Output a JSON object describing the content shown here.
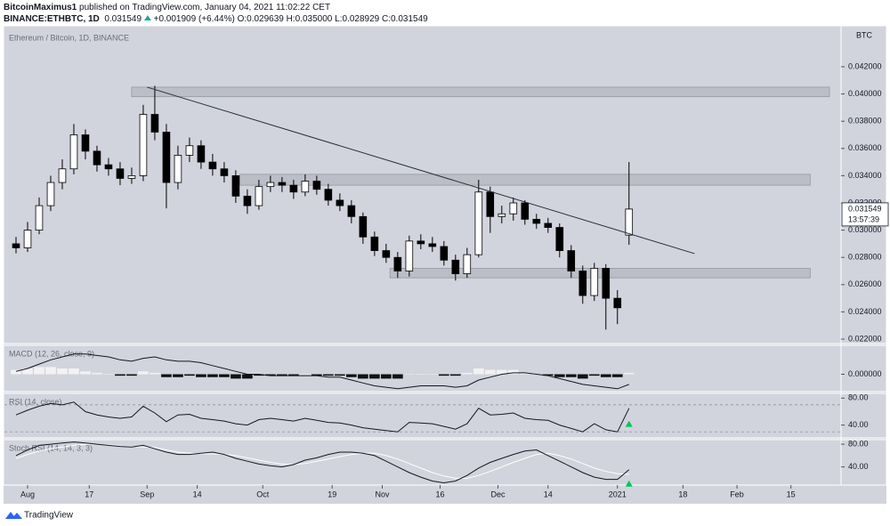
{
  "header": {
    "author": "BitcoinMaximus1",
    "published": "published on TradingView.com, January 04, 2021 11:02:22 CET",
    "symbol": "BINANCE:ETHBTC, 1D",
    "last": "0.031549",
    "change": "+0.001909 (+6.44%)",
    "open": "O:0.029639",
    "high": "H:0.035000",
    "low": "L:0.028929",
    "close": "C:0.031549"
  },
  "footer": {
    "brand": "TradingView"
  },
  "chart_data": {
    "type": "candlestick",
    "title": "Ethereum / Bitcoin, 1D, BINANCE",
    "y_axis_unit": "BTC",
    "last_price_label": "0.031549",
    "countdown": "13:57:39",
    "xlim": [
      -6,
      211
    ],
    "xticks": [
      {
        "value": 0,
        "label": "Aug"
      },
      {
        "value": 16,
        "label": "17"
      },
      {
        "value": 31,
        "label": "Sep"
      },
      {
        "value": 44,
        "label": "14"
      },
      {
        "value": 61,
        "label": "Oct"
      },
      {
        "value": 79,
        "label": "19"
      },
      {
        "value": 92,
        "label": "Nov"
      },
      {
        "value": 107,
        "label": "16"
      },
      {
        "value": 122,
        "label": "Dec"
      },
      {
        "value": 135,
        "label": "14"
      },
      {
        "value": 153,
        "label": "2021"
      },
      {
        "value": 170,
        "label": "18"
      },
      {
        "value": 184,
        "label": "Feb"
      },
      {
        "value": 198,
        "label": "15"
      }
    ],
    "ylim": [
      0.02174,
      0.04494
    ],
    "yticks": [
      {
        "value": 0.022,
        "label": "0.022000"
      },
      {
        "value": 0.024,
        "label": "0.024000"
      },
      {
        "value": 0.026,
        "label": "0.026000"
      },
      {
        "value": 0.028,
        "label": "0.028000"
      },
      {
        "value": 0.03,
        "label": "0.030000"
      },
      {
        "value": 0.032,
        "label": "0.032000"
      },
      {
        "value": 0.034,
        "label": "0.034000"
      },
      {
        "value": 0.036,
        "label": "0.036000"
      },
      {
        "value": 0.038,
        "label": "0.038000"
      },
      {
        "value": 0.04,
        "label": "0.040000"
      },
      {
        "value": 0.042,
        "label": "0.042000"
      }
    ],
    "up_color": "#ffffff",
    "down_color": "#000000",
    "candles": {
      "x": [
        -3,
        0,
        3,
        6,
        9,
        12,
        15,
        18,
        21,
        24,
        27,
        30,
        33,
        36,
        39,
        42,
        45,
        48,
        51,
        54,
        57,
        60,
        63,
        66,
        69,
        72,
        75,
        78,
        81,
        84,
        87,
        90,
        93,
        96,
        99,
        102,
        105,
        108,
        111,
        114,
        117,
        120,
        123,
        126,
        129,
        132,
        135,
        138,
        141,
        144,
        147,
        150,
        153,
        156
      ],
      "open": [
        0.029,
        0.0287,
        0.03,
        0.0318,
        0.0335,
        0.0345,
        0.037,
        0.0358,
        0.0348,
        0.0345,
        0.0338,
        0.034,
        0.0385,
        0.0372,
        0.0335,
        0.0355,
        0.0362,
        0.035,
        0.0345,
        0.034,
        0.0325,
        0.0318,
        0.0332,
        0.0335,
        0.0333,
        0.0328,
        0.0336,
        0.033,
        0.0322,
        0.0318,
        0.031,
        0.0295,
        0.0285,
        0.028,
        0.027,
        0.0292,
        0.029,
        0.0288,
        0.0278,
        0.0268,
        0.0282,
        0.0328,
        0.031,
        0.0312,
        0.032,
        0.0308,
        0.0305,
        0.0302,
        0.0285,
        0.027,
        0.0252,
        0.0272,
        0.025,
        0.029639
      ],
      "high": [
        0.0295,
        0.0306,
        0.0324,
        0.034,
        0.0352,
        0.0378,
        0.0374,
        0.0362,
        0.0353,
        0.035,
        0.0346,
        0.0392,
        0.0406,
        0.0378,
        0.0362,
        0.0368,
        0.0366,
        0.0356,
        0.035,
        0.0344,
        0.033,
        0.0337,
        0.034,
        0.0339,
        0.0337,
        0.0341,
        0.034,
        0.0334,
        0.0327,
        0.0322,
        0.0313,
        0.0299,
        0.029,
        0.0284,
        0.0296,
        0.0297,
        0.0295,
        0.0292,
        0.0282,
        0.0287,
        0.0337,
        0.0332,
        0.0318,
        0.0324,
        0.0322,
        0.0312,
        0.0309,
        0.0305,
        0.0289,
        0.0274,
        0.0276,
        0.0275,
        0.0256,
        0.035
      ],
      "low": [
        0.0283,
        0.0284,
        0.0297,
        0.0314,
        0.033,
        0.0341,
        0.0352,
        0.0343,
        0.034,
        0.0333,
        0.0334,
        0.0336,
        0.0366,
        0.0316,
        0.033,
        0.035,
        0.0345,
        0.034,
        0.0335,
        0.032,
        0.0312,
        0.0315,
        0.0328,
        0.0328,
        0.0323,
        0.0325,
        0.0326,
        0.0318,
        0.0314,
        0.0305,
        0.029,
        0.0281,
        0.0276,
        0.0265,
        0.0266,
        0.0286,
        0.0284,
        0.0274,
        0.0263,
        0.0265,
        0.028,
        0.0298,
        0.0305,
        0.0307,
        0.0304,
        0.0301,
        0.0298,
        0.028,
        0.0265,
        0.0246,
        0.0248,
        0.0227,
        0.0231,
        0.028929
      ],
      "close": [
        0.0287,
        0.03,
        0.0318,
        0.0335,
        0.0345,
        0.037,
        0.0358,
        0.0348,
        0.0345,
        0.0338,
        0.034,
        0.0385,
        0.0372,
        0.0335,
        0.0355,
        0.0362,
        0.035,
        0.0345,
        0.034,
        0.0325,
        0.0318,
        0.0332,
        0.0335,
        0.0333,
        0.0328,
        0.0336,
        0.033,
        0.0322,
        0.0318,
        0.031,
        0.0295,
        0.0285,
        0.028,
        0.027,
        0.0292,
        0.029,
        0.0288,
        0.0278,
        0.0268,
        0.0282,
        0.0328,
        0.031,
        0.0312,
        0.032,
        0.0308,
        0.0305,
        0.0302,
        0.0285,
        0.027,
        0.0252,
        0.0272,
        0.025,
        0.0243,
        0.031549
      ]
    },
    "zones": [
      {
        "from": 27,
        "to": 208,
        "low": 0.0398,
        "high": 0.0405
      },
      {
        "from": 55,
        "to": 203,
        "low": 0.0333,
        "high": 0.0341
      },
      {
        "from": 94,
        "to": 203,
        "low": 0.0265,
        "high": 0.0272
      }
    ],
    "trendline": {
      "x": [
        31,
        173
      ],
      "y": [
        0.0405,
        0.02828
      ]
    },
    "macd": {
      "title": "MACD (12, 26, close, 9)",
      "ylim": [
        -0.0012,
        0.002
      ],
      "yticks": [
        {
          "value": 0,
          "label": "0.000000"
        }
      ],
      "line": [
        0.0002,
        0.0004,
        0.0007,
        0.001,
        0.0012,
        0.0014,
        0.0014,
        0.0013,
        0.0012,
        0.001,
        0.0009,
        0.0011,
        0.0012,
        0.001,
        0.0009,
        0.0009,
        0.0008,
        0.0006,
        0.0004,
        0.0002,
        0,
        0,
        -0.0001,
        -0.0001,
        -0.0001,
        -0.0001,
        -0.0001,
        -0.0002,
        -0.0002,
        -0.0004,
        -0.0006,
        -0.0008,
        -0.0009,
        -0.001,
        -0.0009,
        -0.0008,
        -0.0008,
        -0.0008,
        -0.0009,
        -0.0008,
        -0.0004,
        -0.0002,
        0,
        0.0001,
        0.0001,
        0,
        -0.0001,
        -0.0003,
        -0.0005,
        -0.0007,
        -0.0008,
        -0.0009,
        -0.001,
        -0.0007
      ],
      "histogram": [
        0.0003,
        0.0004,
        0.0005,
        0.0005,
        0.0004,
        0.0004,
        0.0002,
        0.0001,
        0,
        -0.0001,
        -0.0001,
        0.0002,
        0.0001,
        -0.0002,
        -0.0002,
        -0.0001,
        -0.0002,
        -0.0002,
        -0.0002,
        -0.0003,
        -0.0003,
        -0.0001,
        -0.0001,
        -0.0001,
        -0.0001,
        0,
        -0.0001,
        -0.0001,
        -0.0001,
        -0.0002,
        -0.0003,
        -0.0003,
        -0.0003,
        -0.0003,
        0,
        0,
        0,
        -0.0001,
        -0.0001,
        0.0001,
        0.0004,
        0.0003,
        0.0003,
        0.0003,
        0.0001,
        0,
        -0.0001,
        -0.0002,
        -0.0002,
        -0.0003,
        -0.0001,
        -0.0002,
        -0.0002,
        0.0001
      ]
    },
    "rsi": {
      "title": "RSI (14, close)",
      "ylim": [
        21,
        87
      ],
      "yticks": [
        {
          "value": 80,
          "label": "80.00"
        },
        {
          "value": 40,
          "label": "40.00"
        }
      ],
      "bands": [
        70,
        30
      ],
      "line": [
        55,
        62,
        68,
        72,
        70,
        74,
        60,
        55,
        52,
        50,
        52,
        68,
        58,
        45,
        55,
        56,
        50,
        48,
        46,
        42,
        40,
        48,
        50,
        48,
        46,
        50,
        47,
        44,
        43,
        40,
        36,
        34,
        32,
        30,
        44,
        43,
        42,
        38,
        34,
        42,
        65,
        55,
        56,
        58,
        50,
        48,
        47,
        40,
        35,
        30,
        42,
        33,
        30,
        65
      ]
    },
    "stoch": {
      "title": "Stoch RSI (14, 14, 3, 3)",
      "ylim": [
        8,
        88
      ],
      "yticks": [
        {
          "value": 80,
          "label": "80.00"
        },
        {
          "value": 40,
          "label": "40.00"
        }
      ],
      "k": [
        60,
        70,
        78,
        80,
        82,
        84,
        82,
        80,
        78,
        76,
        75,
        78,
        72,
        66,
        62,
        62,
        64,
        66,
        62,
        55,
        50,
        45,
        42,
        40,
        44,
        52,
        56,
        62,
        66,
        66,
        64,
        60,
        50,
        40,
        30,
        22,
        15,
        12,
        15,
        25,
        38,
        48,
        55,
        62,
        68,
        70,
        60,
        50,
        40,
        30,
        22,
        18,
        18,
        35
      ],
      "d": [
        55,
        62,
        68,
        72,
        75,
        78,
        80,
        80,
        79,
        77,
        76,
        75,
        74,
        70,
        66,
        64,
        63,
        63,
        62,
        60,
        56,
        52,
        48,
        45,
        44,
        46,
        50,
        54,
        58,
        62,
        64,
        64,
        60,
        54,
        46,
        38,
        30,
        24,
        20,
        20,
        25,
        32,
        40,
        48,
        55,
        62,
        64,
        60,
        54,
        46,
        38,
        32,
        28,
        27
      ]
    }
  }
}
